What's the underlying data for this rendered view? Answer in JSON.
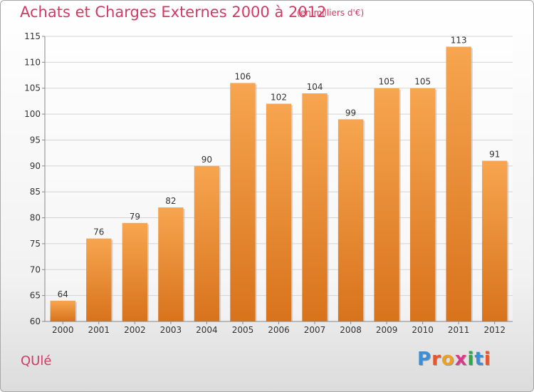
{
  "header": {
    "title": "Achats et Charges Externes 2000 à 2012",
    "subtitle": "(en milliers d'€)"
  },
  "footer": {
    "commune": "QUlé",
    "logo_letters": [
      "P",
      "r",
      "o",
      "x",
      "i",
      "t",
      "i"
    ],
    "logo_colors": [
      "#3a8fd6",
      "#e8562a",
      "#f0a020",
      "#d83a8a",
      "#2aa84a",
      "#3a8fd6",
      "#e8562a"
    ]
  },
  "colors": {
    "bar_light": "#f7a550",
    "bar_dark": "#d8731c",
    "text": "#d23a63"
  },
  "chart_data": {
    "type": "bar",
    "categories": [
      "2000",
      "2001",
      "2002",
      "2003",
      "2004",
      "2005",
      "2006",
      "2007",
      "2008",
      "2009",
      "2010",
      "2011",
      "2012"
    ],
    "values": [
      64,
      76,
      79,
      82,
      90,
      106,
      102,
      104,
      99,
      105,
      105,
      113,
      91
    ],
    "ylim": [
      60,
      115
    ],
    "yticks": [
      60,
      65,
      70,
      75,
      80,
      85,
      90,
      95,
      100,
      105,
      110,
      115
    ],
    "grid": true
  }
}
